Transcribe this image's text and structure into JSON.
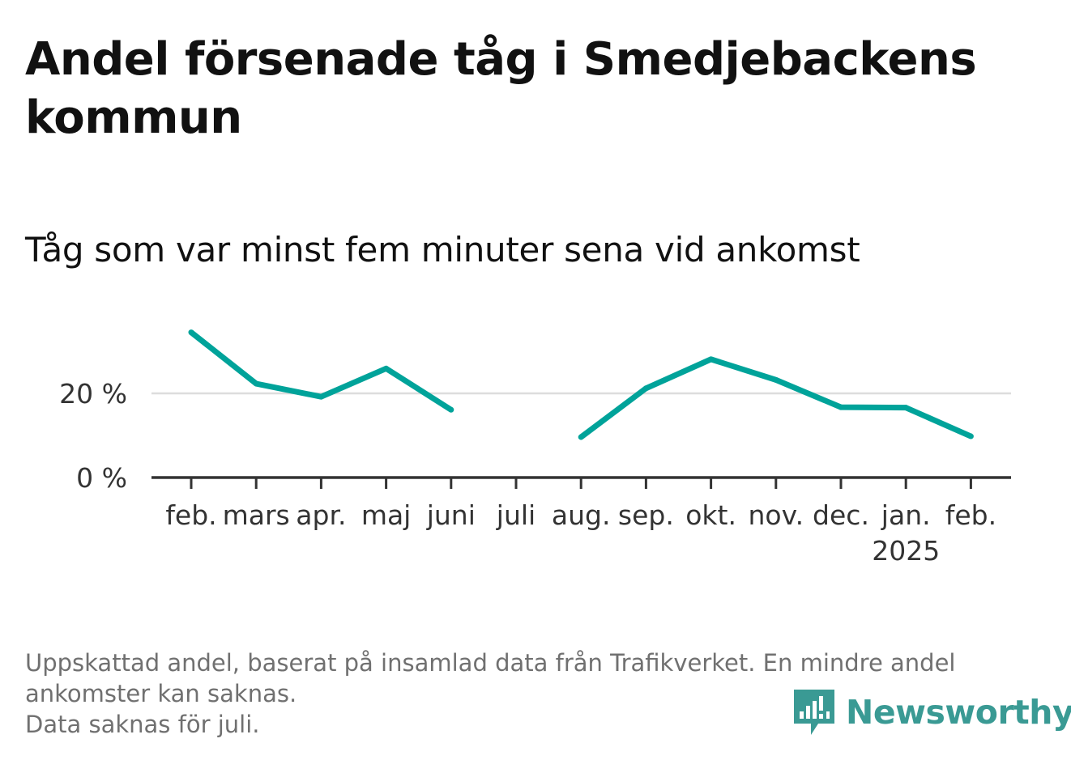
{
  "header": {
    "title": "Andel försenade tåg i Smedjebackens kommun",
    "subtitle": "Tåg som var minst fem minuter sena vid ankomst"
  },
  "chart_data": {
    "type": "line",
    "categories": [
      "feb.",
      "mars",
      "apr.",
      "maj",
      "juni",
      "juli",
      "aug.",
      "sep.",
      "okt.",
      "nov.",
      "dec.",
      "jan.",
      "feb."
    ],
    "year_label": "2025",
    "year_label_category_index": 11,
    "series": [
      {
        "values": [
          34.5,
          22.3,
          19.2,
          25.9,
          16.1,
          null,
          9.6,
          21.2,
          28.1,
          23.2,
          16.7,
          16.6,
          9.8
        ]
      }
    ],
    "y_ticks": [
      0,
      20
    ],
    "y_tick_labels": [
      "0 %",
      "20 %"
    ],
    "ylim": [
      0,
      35
    ],
    "grid": true,
    "colors": {
      "line": "#00a39a",
      "grid": "#dddddd",
      "axis": "#333333"
    }
  },
  "footer": {
    "notes": [
      "Uppskattad andel, baserat på insamlad data från Trafikverket. En mindre andel",
      "ankomster kan saknas.",
      "Data saknas för juli."
    ],
    "brand": "Newsworthy",
    "brand_icon": "newsworthy-logo-icon",
    "brand_color": "#3a9a94"
  }
}
